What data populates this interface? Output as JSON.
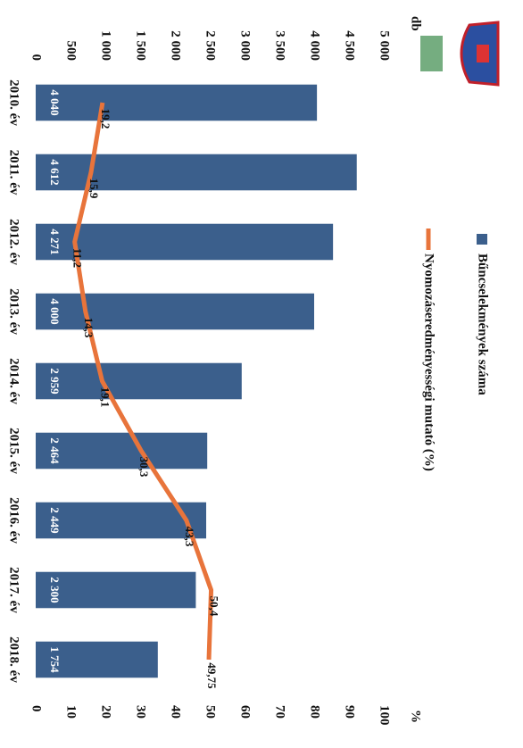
{
  "chart_data": {
    "type": "bar-line",
    "categories": [
      "2010. év",
      "2011. év",
      "2012. év",
      "2013. év",
      "2014. év",
      "2015. év",
      "2016. év",
      "2017. év",
      "2018. év"
    ],
    "series": [
      {
        "name": "Bűncselekmények száma",
        "type": "bar",
        "color": "#3b5f8c",
        "values": [
          4040,
          4612,
          4271,
          4000,
          2959,
          2464,
          2449,
          2300,
          1754
        ],
        "value_labels": [
          "4 040",
          "4 612",
          "4 271",
          "4 000",
          "2 959",
          "2 464",
          "2 449",
          "2 300",
          "1 754"
        ]
      },
      {
        "name": "Nyomozáseredményességi mutató (%)",
        "type": "line",
        "axis": "y2",
        "color": "#e8743b",
        "values": [
          19.2,
          15.9,
          11.2,
          14.3,
          19.1,
          30.3,
          43.3,
          50.4,
          49.75
        ],
        "value_labels": [
          "19,2",
          "15,9",
          "11,2",
          "14,3",
          "19,1",
          "30,3",
          "43,3",
          "50,4",
          "49,75"
        ]
      }
    ],
    "ylabel": "db",
    "y2label": "%",
    "ylim": [
      0,
      5000
    ],
    "yticks": [
      0,
      500,
      {
        "value": 1000,
        "label": "1 000"
      },
      {
        "value": 1500,
        "label": "1 500"
      },
      {
        "value": 2000,
        "label": "2 000"
      },
      {
        "value": 2500,
        "label": "2 500"
      },
      {
        "value": 3000,
        "label": "3 000"
      },
      {
        "value": 3500,
        "label": "3 500"
      },
      {
        "value": 4000,
        "label": "4 000"
      },
      {
        "value": 4500,
        "label": "4 500"
      },
      {
        "value": 5000,
        "label": "5 000"
      }
    ],
    "y2lim": [
      0,
      100
    ],
    "y2ticks": [
      0,
      10,
      20,
      30,
      40,
      50,
      60,
      70,
      80,
      90,
      100
    ]
  }
}
